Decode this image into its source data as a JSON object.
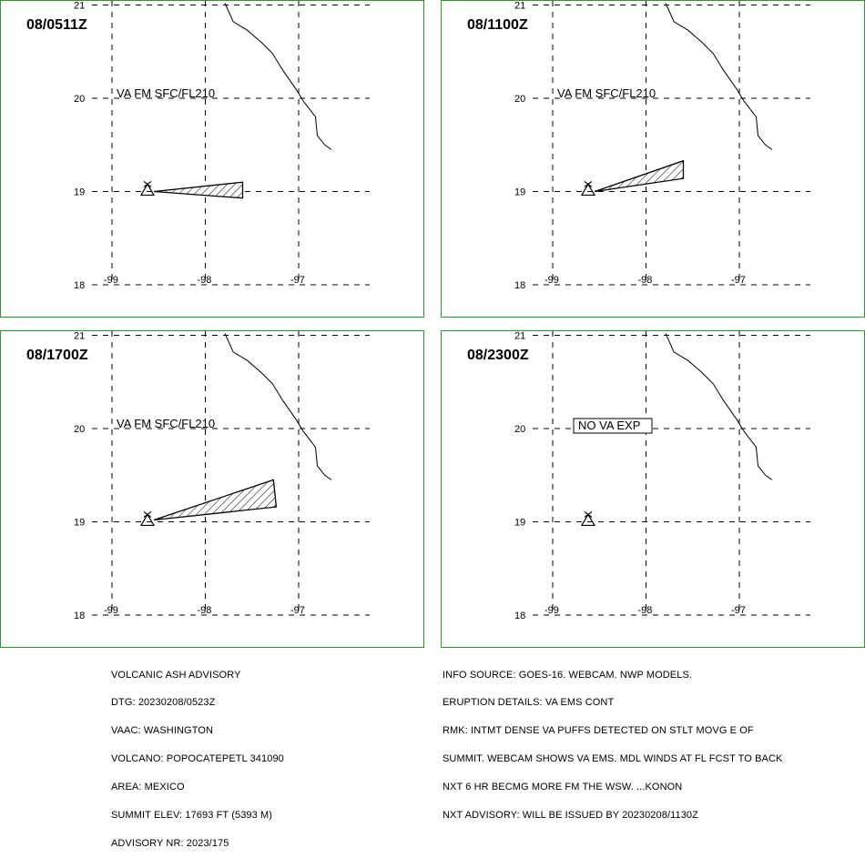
{
  "panels": [
    {
      "id": "p1",
      "time": "08/0511Z",
      "label": "VA FM SFC/FL210",
      "polygon": [
        [
          -98.55,
          19.0
        ],
        [
          -97.6,
          19.1
        ],
        [
          -97.6,
          18.93
        ]
      ]
    },
    {
      "id": "p2",
      "time": "08/1100Z",
      "label": "VA FM SFC/FL210",
      "polygon": [
        [
          -98.55,
          19.0
        ],
        [
          -97.6,
          19.33
        ],
        [
          -97.6,
          19.14
        ]
      ]
    },
    {
      "id": "p3",
      "time": "08/1700Z",
      "label": "VA FM SFC/FL210",
      "polygon": [
        [
          -98.55,
          19.02
        ],
        [
          -97.27,
          19.45
        ],
        [
          -97.24,
          19.16
        ]
      ]
    },
    {
      "id": "p4",
      "time": "08/2300Z",
      "label": "NO VA EXP",
      "polygon": []
    }
  ],
  "axes": {
    "lon_ticks": [
      "-99",
      "-98",
      "-97"
    ],
    "lat_ticks": [
      "21",
      "20",
      "19",
      "18"
    ],
    "lon_range": [
      -99.05,
      -96.1
    ],
    "lat_range": [
      18.0,
      21.0
    ]
  },
  "volcano": {
    "name": "POPOCATEPETL",
    "lon": -98.62,
    "lat": 19.02
  },
  "advisory_left": [
    "VOLCANIC ASH ADVISORY",
    "DTG: 20230208/0523Z",
    "VAAC: WASHINGTON",
    "VOLCANO: POPOCATEPETL 341090",
    "AREA: MEXICO",
    "SUMMIT ELEV: 17693 FT (5393 M)",
    "ADVISORY NR: 2023/175"
  ],
  "advisory_right": [
    "INFO SOURCE: GOES-16. WEBCAM. NWP MODELS.",
    "ERUPTION DETAILS: VA EMS CONT",
    "RMK: INTMT DENSE VA PUFFS DETECTED ON STLT MOVG E OF",
    "SUMMIT. WEBCAM SHOWS VA EMS. MDL WINDS AT FL FCST TO BACK",
    "NXT 6 HR BECMG MORE FM THE WSW. ...KONON",
    "NXT ADVISORY: WILL BE ISSUED BY 20230208/1130Z"
  ],
  "colors": {
    "panel_border": "#2e9a2e",
    "ink": "#000000",
    "background": "#ffffff"
  }
}
